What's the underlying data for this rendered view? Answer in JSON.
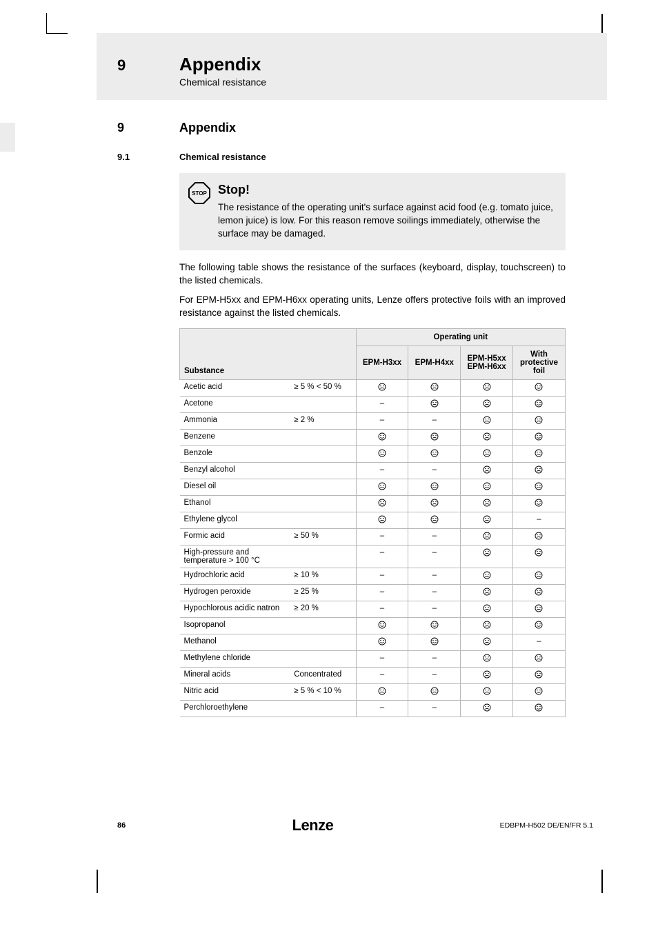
{
  "header": {
    "chapter_number": "9",
    "chapter_title": "Appendix",
    "chapter_subtitle": "Chemical resistance"
  },
  "section": {
    "number": "9",
    "title": "Appendix"
  },
  "subsection": {
    "number": "9.1",
    "title": "Chemical resistance"
  },
  "stop_box": {
    "title": "Stop!",
    "text": "The resistance of the operating unit's surface against acid food (e.g. tomato juice, lemon juice) is low. For this reason remove soilings immediately, otherwise the surface may be damaged."
  },
  "paragraphs": [
    "The following table shows the resistance of the surfaces (keyboard, display, touchscreen) to the listed chemicals.",
    "For EPM-H5xx and EPM-H6xx operating units, Lenze offers protective foils with an improved resistance against the listed chemicals."
  ],
  "table": {
    "super_header": "Operating unit",
    "col_substance": "Substance",
    "columns": [
      "EPM-H3xx",
      "EPM-H4xx",
      "EPM-H5xx EPM-H6xx",
      "With protective foil"
    ],
    "rows": [
      {
        "name": "Acetic acid",
        "cond": "≥ 5 % < 50 %",
        "v": [
          "bad",
          "bad",
          "bad",
          "good"
        ]
      },
      {
        "name": "Acetone",
        "cond": "",
        "v": [
          "dash",
          "bad",
          "bad",
          "good"
        ]
      },
      {
        "name": "Ammonia",
        "cond": "≥ 2 %",
        "v": [
          "dash",
          "dash",
          "bad",
          "bad"
        ]
      },
      {
        "name": "Benzene",
        "cond": "",
        "v": [
          "good",
          "bad",
          "bad",
          "good"
        ]
      },
      {
        "name": "Benzole",
        "cond": "",
        "v": [
          "good",
          "good",
          "bad",
          "good"
        ]
      },
      {
        "name": "Benzyl alcohol",
        "cond": "",
        "v": [
          "dash",
          "dash",
          "bad",
          "bad"
        ]
      },
      {
        "name": "Diesel oil",
        "cond": "",
        "v": [
          "good",
          "good",
          "good",
          "good"
        ]
      },
      {
        "name": "Ethanol",
        "cond": "",
        "v": [
          "bad",
          "bad",
          "bad",
          "good"
        ]
      },
      {
        "name": "Ethylene glycol",
        "cond": "",
        "v": [
          "bad",
          "bad",
          "bad",
          "dash"
        ]
      },
      {
        "name": "Formic acid",
        "cond": "≥ 50 %",
        "v": [
          "dash",
          "dash",
          "bad",
          "bad"
        ]
      },
      {
        "name": "High-pressure and temperature > 100 °C",
        "cond": "",
        "v": [
          "dash",
          "dash",
          "bad",
          "bad"
        ]
      },
      {
        "name": "Hydrochloric acid",
        "cond": "≥ 10 %",
        "v": [
          "dash",
          "dash",
          "bad",
          "bad"
        ]
      },
      {
        "name": "Hydrogen peroxide",
        "cond": "≥ 25 %",
        "v": [
          "dash",
          "dash",
          "bad",
          "bad"
        ]
      },
      {
        "name": "Hypochlorous acidic natron",
        "cond": "≥ 20 %",
        "v": [
          "dash",
          "dash",
          "bad",
          "bad"
        ]
      },
      {
        "name": "Isopropanol",
        "cond": "",
        "v": [
          "good",
          "good",
          "bad",
          "good"
        ]
      },
      {
        "name": "Methanol",
        "cond": "",
        "v": [
          "good",
          "good",
          "bad",
          "dash"
        ]
      },
      {
        "name": "Methylene chloride",
        "cond": "",
        "v": [
          "dash",
          "dash",
          "bad",
          "bad"
        ]
      },
      {
        "name": "Mineral acids",
        "cond": "Concentrated",
        "v": [
          "dash",
          "dash",
          "bad",
          "bad"
        ]
      },
      {
        "name": "Nitric acid",
        "cond": "≥ 5 % < 10 %",
        "v": [
          "bad",
          "bad",
          "bad",
          "good"
        ]
      },
      {
        "name": "Perchloroethylene",
        "cond": "",
        "v": [
          "dash",
          "dash",
          "bad",
          "good"
        ]
      }
    ]
  },
  "footer": {
    "page": "86",
    "brand": "Lenze",
    "doc_id": "EDBPM-H502  DE/EN/FR  5.1"
  },
  "colors": {
    "band": "#ececec",
    "border": "#b8b8b8",
    "text": "#000000"
  }
}
